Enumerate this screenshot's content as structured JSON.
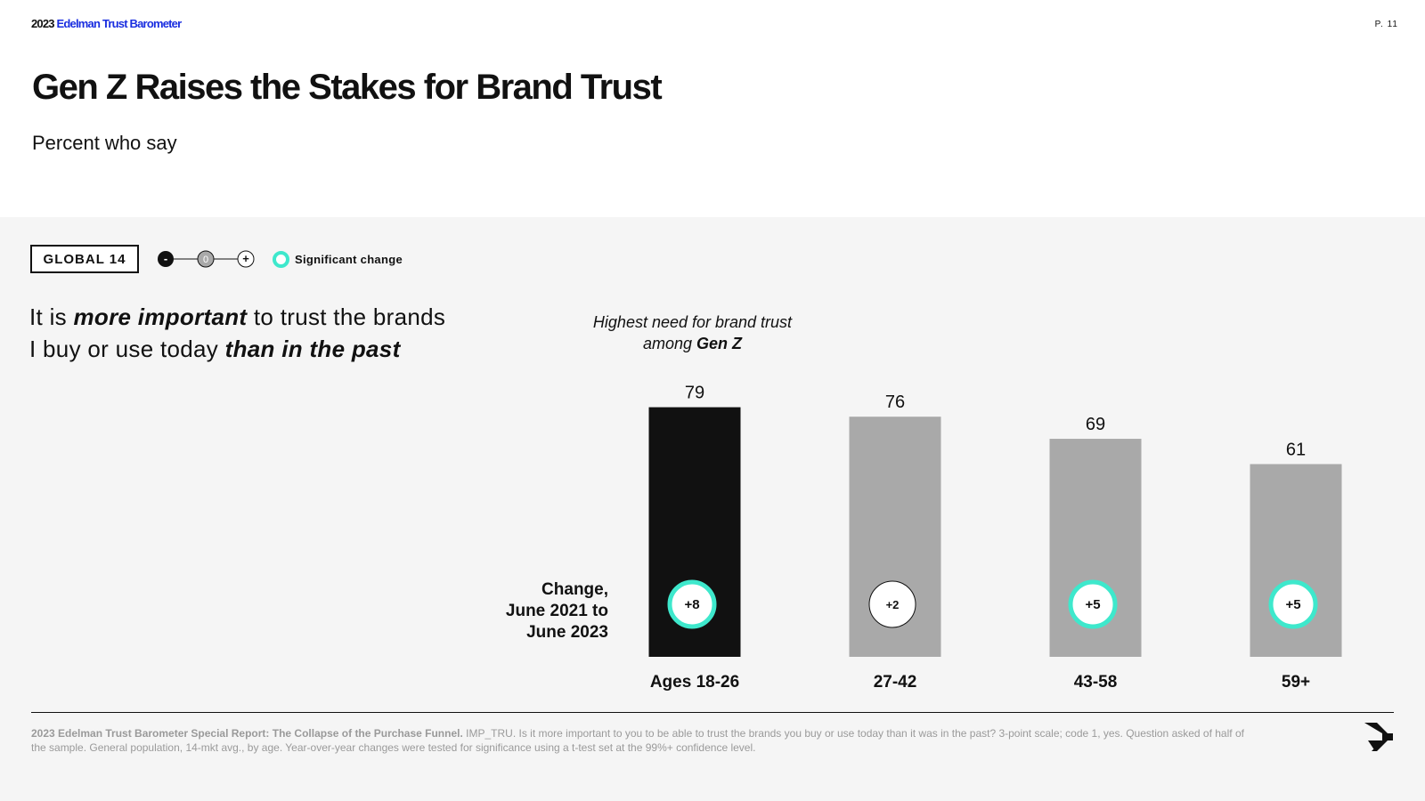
{
  "header": {
    "brand_year": "2023",
    "brand_name": "Edelman Trust Barometer",
    "page": "P. 11",
    "title": "Gen Z Raises the Stakes for Brand Trust",
    "subtitle": "Percent who say"
  },
  "legend": {
    "region": "GLOBAL 14",
    "minus": "-",
    "zero": "0",
    "plus": "+",
    "significant_label": "Significant change"
  },
  "statement": {
    "p1": "It is ",
    "em1": "more important",
    "p2": " to trust the brands",
    "p3": "I buy or use today ",
    "em2": "than in the past"
  },
  "annotation": {
    "line1": "Highest need for brand trust",
    "line2_prefix": "among ",
    "line2_bold": "Gen Z"
  },
  "change_label": {
    "line1": "Change,",
    "line2": "June 2021 to",
    "line3": "June 2023"
  },
  "chart_data": {
    "type": "bar",
    "title": "It is more important to trust the brands I buy or use today than in the past",
    "subtitle": "Percent who say",
    "categories": [
      "Ages 18-26",
      "27-42",
      "43-58",
      "59+"
    ],
    "values": [
      79,
      76,
      69,
      61
    ],
    "changes": [
      "+8",
      "+2",
      "+5",
      "+5"
    ],
    "significant": [
      true,
      false,
      true,
      true
    ],
    "highlight_index": 0,
    "ylim": [
      0,
      100
    ],
    "xlabel": "",
    "ylabel": "",
    "colors": {
      "highlight": "#111111",
      "default": "#a9a9a9",
      "significant": "#3ee8cc",
      "neutral": "#111111"
    }
  },
  "footer": {
    "source_bold": "2023 Edelman Trust Barometer Special Report: The Collapse of the Purchase Funnel.",
    "note": " IMP_TRU. Is it more important to you to be able to trust the brands you buy or use today than it was in the past? 3-point scale; code 1, yes. Question asked of half of the sample. General population, 14-mkt avg., by age. Year-over-year changes were tested for significance using a t-test set at the 99%+ confidence level."
  }
}
